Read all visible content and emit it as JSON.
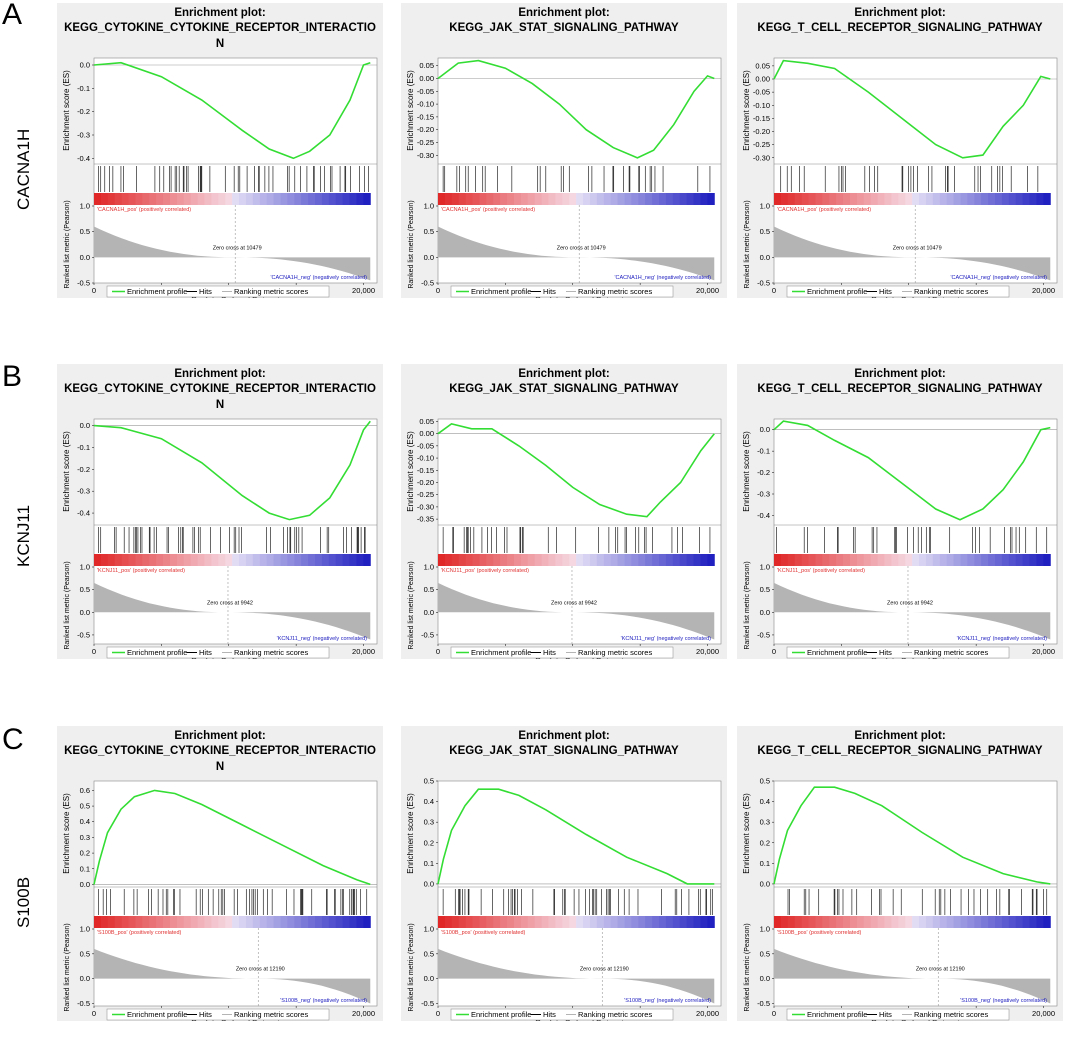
{
  "rows": [
    {
      "letter": "A",
      "gene": "CACNA1H",
      "zero_cross": 10479,
      "pos_label": "'CACNA1H_pos' (positively correlated)",
      "neg_label": "'CACNA1H_neg' (negatively correlated)"
    },
    {
      "letter": "B",
      "gene": "KCNJ11",
      "zero_cross": 9942,
      "pos_label": "'KCNJ11_pos' (positively correlated)",
      "neg_label": "'KCNJ11_neg' (negatively correlated)"
    },
    {
      "letter": "C",
      "gene": "S100B",
      "zero_cross": 12190,
      "pos_label": "'S100B_pos' (positively correlated)",
      "neg_label": "'S100B_neg' (negatively correlated)"
    }
  ],
  "common": {
    "title_prefix": "Enrichment plot:",
    "es_ylabel": "Enrichment score (ES)",
    "rank_ylabel": "Ranked list metric (Pearson)",
    "xlabel": "Rank in Ordered Dataset",
    "x_ticks": [
      "0",
      "5,000",
      "10,000",
      "15,000",
      "20,000"
    ],
    "zero_cross_prefix": "Zero cross at",
    "legend": [
      "Enrichment profile",
      "Hits",
      "Ranking metric scores"
    ],
    "colors": {
      "profile": "#33dd33",
      "hits": "#000000",
      "metric": "#b4b4b4",
      "pos": "#e03030",
      "neg": "#2020c0",
      "panel": "#efefef"
    }
  },
  "chart_data": [
    {
      "type": "line",
      "row": "A",
      "title_line1": "KEGG_CYTOKINE_CYTOKINE_RECEPTOR_INTERACTIO",
      "title_line2": "N",
      "x": [
        0,
        2000,
        5000,
        8000,
        11000,
        13000,
        14800,
        16000,
        17500,
        19000,
        20000,
        20500
      ],
      "es": [
        0.0,
        0.01,
        -0.05,
        -0.15,
        -0.28,
        -0.36,
        -0.4,
        -0.37,
        -0.3,
        -0.15,
        0.0,
        0.01
      ],
      "ylim": [
        -0.42,
        0.03
      ],
      "yticks": [
        0.0,
        -0.1,
        -0.2,
        -0.3,
        -0.4
      ],
      "ytick_labels": [
        "0.0",
        "-0.1",
        "-0.2",
        "-0.3",
        "-0.4"
      ],
      "rank_ylim": [
        -0.5,
        1.0
      ],
      "rank_ticks": [
        1.0,
        0.5,
        0.0,
        -0.5
      ],
      "rank_tick_labels": [
        "1.0",
        "0.5",
        "0.0",
        "-0.5"
      ],
      "rank_start": 0.6,
      "rank_end": -0.45,
      "hit_density": 0.5
    },
    {
      "type": "line",
      "row": "A",
      "title_line1": "KEGG_JAK_STAT_SIGNALING_PATHWAY",
      "title_line2": "",
      "x": [
        0,
        1500,
        3000,
        5000,
        7000,
        9000,
        11000,
        13000,
        14800,
        16000,
        17500,
        19000,
        20000,
        20500
      ],
      "es": [
        0.0,
        0.06,
        0.07,
        0.04,
        -0.02,
        -0.1,
        -0.2,
        -0.27,
        -0.31,
        -0.28,
        -0.18,
        -0.05,
        0.01,
        0.0
      ],
      "ylim": [
        -0.33,
        0.08
      ],
      "yticks": [
        0.05,
        0.0,
        -0.05,
        -0.1,
        -0.15,
        -0.2,
        -0.25,
        -0.3
      ],
      "ytick_labels": [
        "0.05",
        "0.00",
        "-0.05",
        "-0.10",
        "-0.15",
        "-0.20",
        "-0.25",
        "-0.30"
      ],
      "rank_ylim": [
        -0.5,
        1.0
      ],
      "rank_ticks": [
        1.0,
        0.5,
        0.0,
        -0.5
      ],
      "rank_tick_labels": [
        "1.0",
        "0.5",
        "0.0",
        "-0.5"
      ],
      "rank_start": 0.6,
      "rank_end": -0.45,
      "hit_density": 0.4
    },
    {
      "type": "line",
      "row": "A",
      "title_line1": "KEGG_T_CELL_RECEPTOR_SIGNALING_PATHWAY",
      "title_line2": "",
      "x": [
        0,
        700,
        2500,
        4500,
        7000,
        9500,
        12000,
        14000,
        15500,
        17000,
        18500,
        19800,
        20500
      ],
      "es": [
        0.0,
        0.07,
        0.06,
        0.04,
        -0.05,
        -0.15,
        -0.25,
        -0.3,
        -0.29,
        -0.18,
        -0.1,
        0.01,
        0.0
      ],
      "ylim": [
        -0.32,
        0.08
      ],
      "yticks": [
        0.05,
        0.0,
        -0.05,
        -0.1,
        -0.15,
        -0.2,
        -0.25,
        -0.3
      ],
      "ytick_labels": [
        "0.05",
        "0.00",
        "-0.05",
        "-0.10",
        "-0.15",
        "-0.20",
        "-0.25",
        "-0.30"
      ],
      "rank_ylim": [
        -0.5,
        1.0
      ],
      "rank_ticks": [
        1.0,
        0.5,
        0.0,
        -0.5
      ],
      "rank_tick_labels": [
        "1.0",
        "0.5",
        "0.0",
        "-0.5"
      ],
      "rank_start": 0.6,
      "rank_end": -0.45,
      "hit_density": 0.35
    },
    {
      "type": "line",
      "row": "B",
      "title_line1": "KEGG_CYTOKINE_CYTOKINE_RECEPTOR_INTERACTIO",
      "title_line2": "N",
      "x": [
        0,
        2000,
        5000,
        8000,
        11000,
        13000,
        14500,
        16000,
        17500,
        19000,
        20000,
        20500
      ],
      "es": [
        0.0,
        -0.01,
        -0.06,
        -0.17,
        -0.32,
        -0.4,
        -0.43,
        -0.41,
        -0.33,
        -0.18,
        -0.02,
        0.02
      ],
      "ylim": [
        -0.45,
        0.03
      ],
      "yticks": [
        0.0,
        -0.1,
        -0.2,
        -0.3,
        -0.4
      ],
      "ytick_labels": [
        "0.0",
        "-0.1",
        "-0.2",
        "-0.3",
        "-0.4"
      ],
      "rank_ylim": [
        -0.7,
        1.0
      ],
      "rank_ticks": [
        1.0,
        0.5,
        0.0,
        -0.5
      ],
      "rank_tick_labels": [
        "1.0",
        "0.5",
        "0.0",
        "-0.5"
      ],
      "rank_start": 0.65,
      "rank_end": -0.6,
      "hit_density": 0.5
    },
    {
      "type": "line",
      "row": "B",
      "title_line1": "KEGG_JAK_STAT_SIGNALING_PATHWAY",
      "title_line2": "",
      "x": [
        0,
        1000,
        2500,
        4000,
        6000,
        8000,
        10000,
        12000,
        14000,
        15500,
        16500,
        18000,
        19500,
        20500
      ],
      "es": [
        0.0,
        0.04,
        0.02,
        0.02,
        -0.05,
        -0.13,
        -0.22,
        -0.29,
        -0.33,
        -0.34,
        -0.28,
        -0.2,
        -0.07,
        0.0
      ],
      "ylim": [
        -0.37,
        0.06
      ],
      "yticks": [
        0.05,
        0.0,
        -0.05,
        -0.1,
        -0.15,
        -0.2,
        -0.25,
        -0.3,
        -0.35
      ],
      "ytick_labels": [
        "0.05",
        "0.00",
        "-0.05",
        "-0.10",
        "-0.15",
        "-0.20",
        "-0.25",
        "-0.30",
        "-0.35"
      ],
      "rank_ylim": [
        -0.7,
        1.0
      ],
      "rank_ticks": [
        1.0,
        0.5,
        0.0,
        -0.5
      ],
      "rank_tick_labels": [
        "1.0",
        "0.5",
        "0.0",
        "-0.5"
      ],
      "rank_start": 0.65,
      "rank_end": -0.6,
      "hit_density": 0.4
    },
    {
      "type": "line",
      "row": "B",
      "title_line1": "KEGG_T_CELL_RECEPTOR_SIGNALING_PATHWAY",
      "title_line2": "",
      "x": [
        0,
        700,
        2500,
        4500,
        7000,
        9500,
        12000,
        13800,
        15500,
        17000,
        18500,
        19800,
        20500
      ],
      "es": [
        0.0,
        0.04,
        0.02,
        -0.05,
        -0.13,
        -0.25,
        -0.37,
        -0.42,
        -0.37,
        -0.28,
        -0.15,
        0.0,
        0.01
      ],
      "ylim": [
        -0.44,
        0.05
      ],
      "yticks": [
        0.0,
        -0.1,
        -0.2,
        -0.3,
        -0.4
      ],
      "ytick_labels": [
        "0.0",
        "-0.1",
        "-0.2",
        "-0.3",
        "-0.4"
      ],
      "rank_ylim": [
        -0.7,
        1.0
      ],
      "rank_ticks": [
        1.0,
        0.5,
        0.0,
        -0.5
      ],
      "rank_tick_labels": [
        "1.0",
        "0.5",
        "0.0",
        "-0.5"
      ],
      "rank_start": 0.65,
      "rank_end": -0.6,
      "hit_density": 0.35
    },
    {
      "type": "line",
      "row": "C",
      "title_line1": "KEGG_CYTOKINE_CYTOKINE_RECEPTOR_INTERACTIO",
      "title_line2": "N",
      "x": [
        0,
        400,
        1000,
        2000,
        3000,
        4500,
        6000,
        8000,
        11000,
        14000,
        17000,
        19500,
        20500
      ],
      "es": [
        0.0,
        0.15,
        0.33,
        0.48,
        0.56,
        0.6,
        0.58,
        0.51,
        0.38,
        0.25,
        0.12,
        0.03,
        0.0
      ],
      "ylim": [
        -0.01,
        0.66
      ],
      "yticks": [
        0.0,
        0.1,
        0.2,
        0.3,
        0.4,
        0.5,
        0.6
      ],
      "ytick_labels": [
        "0.0",
        "0.1",
        "0.2",
        "0.3",
        "0.4",
        "0.5",
        "0.6"
      ],
      "rank_ylim": [
        -0.55,
        1.0
      ],
      "rank_ticks": [
        1.0,
        0.5,
        0.0,
        -0.5
      ],
      "rank_tick_labels": [
        "1.0",
        "0.5",
        "0.0",
        "-0.5"
      ],
      "rank_start": 0.6,
      "rank_end": -0.5,
      "hit_density": 0.55
    },
    {
      "type": "line",
      "row": "C",
      "title_line1": "KEGG_JAK_STAT_SIGNALING_PATHWAY",
      "title_line2": "",
      "x": [
        0,
        400,
        1000,
        2000,
        3000,
        4500,
        6000,
        8000,
        11000,
        14000,
        17000,
        18500,
        20500
      ],
      "es": [
        0.0,
        0.12,
        0.26,
        0.38,
        0.46,
        0.46,
        0.43,
        0.36,
        0.24,
        0.13,
        0.05,
        0.0,
        0.0
      ],
      "ylim": [
        -0.01,
        0.5
      ],
      "yticks": [
        0.0,
        0.1,
        0.2,
        0.3,
        0.4,
        0.5
      ],
      "ytick_labels": [
        "0.0",
        "0.1",
        "0.2",
        "0.3",
        "0.4",
        "0.5"
      ],
      "rank_ylim": [
        -0.55,
        1.0
      ],
      "rank_ticks": [
        1.0,
        0.5,
        0.0,
        -0.5
      ],
      "rank_tick_labels": [
        "1.0",
        "0.5",
        "0.0",
        "-0.5"
      ],
      "rank_start": 0.6,
      "rank_end": -0.5,
      "hit_density": 0.45
    },
    {
      "type": "line",
      "row": "C",
      "title_line1": "KEGG_T_CELL_RECEPTOR_SIGNALING_PATHWAY",
      "title_line2": "",
      "x": [
        0,
        400,
        1000,
        2000,
        3000,
        4500,
        6000,
        8000,
        11000,
        14000,
        17000,
        19500,
        20500
      ],
      "es": [
        0.0,
        0.12,
        0.26,
        0.38,
        0.47,
        0.47,
        0.44,
        0.38,
        0.25,
        0.13,
        0.05,
        0.01,
        0.0
      ],
      "ylim": [
        -0.01,
        0.5
      ],
      "yticks": [
        0.0,
        0.1,
        0.2,
        0.3,
        0.4,
        0.5
      ],
      "ytick_labels": [
        "0.0",
        "0.1",
        "0.2",
        "0.3",
        "0.4",
        "0.5"
      ],
      "rank_ylim": [
        -0.55,
        1.0
      ],
      "rank_ticks": [
        1.0,
        0.5,
        0.0,
        -0.5
      ],
      "rank_tick_labels": [
        "1.0",
        "0.5",
        "0.0",
        "-0.5"
      ],
      "rank_start": 0.6,
      "rank_end": -0.5,
      "hit_density": 0.4
    }
  ]
}
